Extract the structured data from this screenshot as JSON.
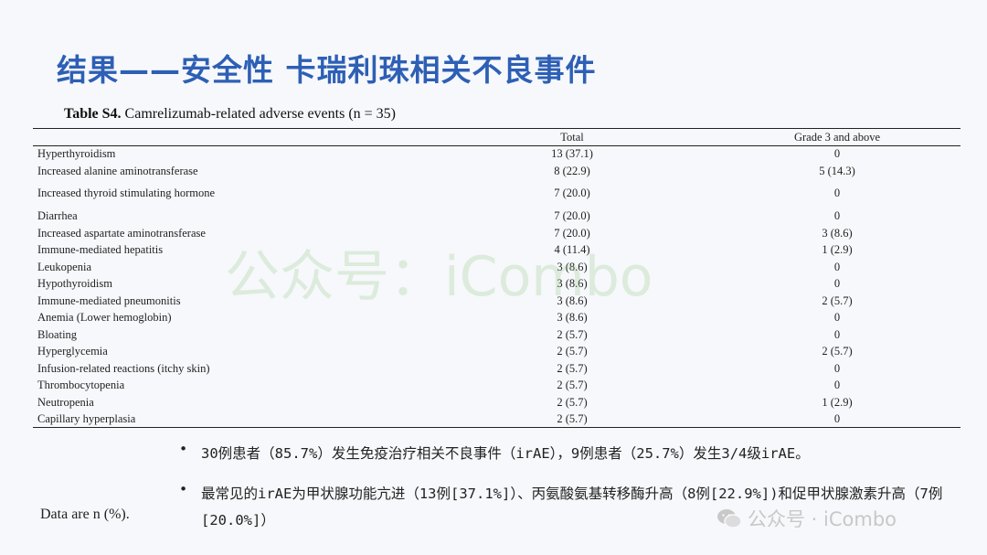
{
  "slide": {
    "title": "结果——安全性 卡瑞利珠相关不良事件"
  },
  "table": {
    "caption_bold": "Table S4.",
    "caption_rest": " Camrelizumab-related adverse events (n = 35)",
    "columns": [
      "",
      "Total",
      "Grade 3 and above"
    ],
    "rows": [
      {
        "name": "Hyperthyroidism",
        "total": "13 (37.1)",
        "grade3": "0"
      },
      {
        "name": "Increased alanine aminotransferase",
        "total": "8 (22.9)",
        "grade3": "5 (14.3)"
      },
      {
        "name": "Increased thyroid stimulating hormone",
        "total": "7 (20.0)",
        "grade3": "0"
      },
      {
        "name": "Diarrhea",
        "total": "7 (20.0)",
        "grade3": "0"
      },
      {
        "name": "Increased aspartate aminotransferase",
        "total": "7 (20.0)",
        "grade3": "3 (8.6)"
      },
      {
        "name": "Immune-mediated hepatitis",
        "total": "4 (11.4)",
        "grade3": "1 (2.9)"
      },
      {
        "name": "Leukopenia",
        "total": "3 (8.6)",
        "grade3": "0"
      },
      {
        "name": "Hypothyroidism",
        "total": "3 (8.6)",
        "grade3": "0"
      },
      {
        "name": "Immune-mediated pneumonitis",
        "total": "3 (8.6)",
        "grade3": "2 (5.7)"
      },
      {
        "name": "Anemia (Lower hemoglobin)",
        "total": "3 (8.6)",
        "grade3": "0"
      },
      {
        "name": "Bloating",
        "total": "2 (5.7)",
        "grade3": "0"
      },
      {
        "name": "Hyperglycemia",
        "total": "2 (5.7)",
        "grade3": "2 (5.7)"
      },
      {
        "name": "Infusion-related reactions (itchy skin)",
        "total": "2 (5.7)",
        "grade3": "0"
      },
      {
        "name": "Thrombocytopenia",
        "total": "2 (5.7)",
        "grade3": "0"
      },
      {
        "name": "Neutropenia",
        "total": "2 (5.7)",
        "grade3": "1 (2.9)"
      },
      {
        "name": "Capillary hyperplasia",
        "total": "2 (5.7)",
        "grade3": "0"
      }
    ]
  },
  "bullets": [
    "30例患者（85.7%）发生免疫治疗相关不良事件（irAE），9例患者（25.7%）发生3/4级irAE。",
    "最常见的irAE为甲状腺功能亢进（13例[37.1%]）、丙氨酸氨基转移酶升高（8例[22.9%])和促甲状腺激素升高（7例[20.0%]）"
  ],
  "bullet_symbol": "•",
  "footnote": "Data are n (%).",
  "watermarks": {
    "center": "公众号：iCombo",
    "corner": "公众号 · iCombo",
    "icon": "wechat-icon"
  }
}
